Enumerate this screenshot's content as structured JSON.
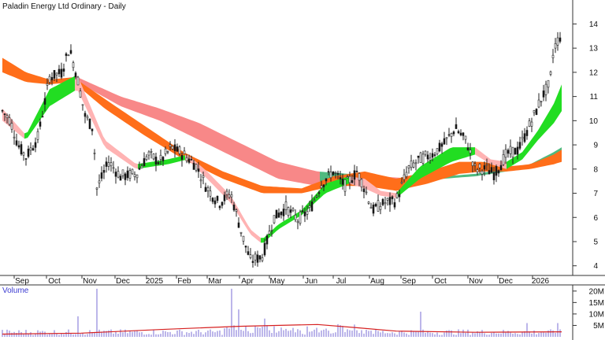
{
  "chart_data": {
    "type": "candlestick",
    "title": "Paladin Energy Ltd Ordinary - Daily",
    "y_ticks": [
      4,
      5,
      6,
      7,
      8,
      9,
      10,
      11,
      12,
      13,
      14
    ],
    "ylim": [
      3.6,
      14.6
    ],
    "x_ticks": [
      "Sep",
      "Oct",
      "Nov",
      "Dec",
      "2025",
      "Feb",
      "Mar",
      "Apr",
      "May",
      "Jun",
      "Jul",
      "Aug",
      "Sep",
      "Oct",
      "Nov",
      "Dec",
      "2026"
    ],
    "price_path": [
      [
        0,
        10.4
      ],
      [
        10,
        10.0
      ],
      [
        20,
        9.0
      ],
      [
        30,
        8.5
      ],
      [
        45,
        9.3
      ],
      [
        60,
        11.8
      ],
      [
        75,
        12.0
      ],
      [
        85,
        13.0
      ],
      [
        95,
        11.8
      ],
      [
        105,
        10.2
      ],
      [
        115,
        9.7
      ],
      [
        120,
        7.2
      ],
      [
        135,
        8.3
      ],
      [
        150,
        7.7
      ],
      [
        170,
        7.8
      ],
      [
        185,
        8.6
      ],
      [
        200,
        8.3
      ],
      [
        215,
        8.9
      ],
      [
        230,
        8.6
      ],
      [
        245,
        8.2
      ],
      [
        260,
        7.2
      ],
      [
        275,
        6.6
      ],
      [
        290,
        7.0
      ],
      [
        305,
        5.2
      ],
      [
        315,
        4.2
      ],
      [
        330,
        4.4
      ],
      [
        345,
        6.0
      ],
      [
        360,
        6.4
      ],
      [
        375,
        5.9
      ],
      [
        390,
        6.3
      ],
      [
        405,
        7.4
      ],
      [
        420,
        7.9
      ],
      [
        435,
        7.3
      ],
      [
        450,
        7.9
      ],
      [
        460,
        7.2
      ],
      [
        470,
        6.3
      ],
      [
        485,
        6.6
      ],
      [
        500,
        6.7
      ],
      [
        515,
        8.0
      ],
      [
        530,
        8.4
      ],
      [
        545,
        8.6
      ],
      [
        560,
        9.0
      ],
      [
        575,
        9.7
      ],
      [
        590,
        9.1
      ],
      [
        600,
        8.0
      ],
      [
        615,
        8.0
      ],
      [
        625,
        7.8
      ],
      [
        640,
        8.6
      ],
      [
        655,
        8.8
      ],
      [
        665,
        9.5
      ],
      [
        675,
        10.2
      ],
      [
        685,
        11.0
      ],
      [
        695,
        11.5
      ],
      [
        700,
        13.0
      ],
      [
        710,
        13.6
      ]
    ],
    "bands": [
      {
        "name": "short",
        "up_color": "#22dd22",
        "down_color": "#ffb3b3",
        "upper": [
          [
            0,
            10.5
          ],
          [
            30,
            9.4
          ],
          [
            60,
            11.3
          ],
          [
            95,
            11.9
          ],
          [
            130,
            9.2
          ],
          [
            170,
            8.2
          ],
          [
            210,
            8.4
          ],
          [
            235,
            8.6
          ],
          [
            260,
            7.9
          ],
          [
            290,
            6.9
          ],
          [
            315,
            5.5
          ],
          [
            330,
            5.1
          ],
          [
            350,
            5.7
          ],
          [
            380,
            6.3
          ],
          [
            410,
            7.4
          ],
          [
            440,
            7.7
          ],
          [
            460,
            7.6
          ],
          [
            480,
            7.1
          ],
          [
            500,
            7.0
          ],
          [
            530,
            8.1
          ],
          [
            570,
            8.9
          ],
          [
            600,
            8.9
          ],
          [
            620,
            8.4
          ],
          [
            640,
            8.3
          ],
          [
            660,
            8.7
          ],
          [
            680,
            9.6
          ],
          [
            700,
            10.7
          ],
          [
            710,
            11.5
          ]
        ],
        "lower": [
          [
            0,
            10.0
          ],
          [
            30,
            9.2
          ],
          [
            60,
            10.6
          ],
          [
            95,
            11.3
          ],
          [
            130,
            8.9
          ],
          [
            170,
            8.0
          ],
          [
            210,
            8.2
          ],
          [
            235,
            8.4
          ],
          [
            260,
            7.6
          ],
          [
            290,
            6.6
          ],
          [
            315,
            5.3
          ],
          [
            330,
            4.9
          ],
          [
            350,
            5.5
          ],
          [
            380,
            6.1
          ],
          [
            410,
            7.0
          ],
          [
            440,
            7.4
          ],
          [
            460,
            7.2
          ],
          [
            480,
            6.9
          ],
          [
            500,
            6.8
          ],
          [
            530,
            7.6
          ],
          [
            570,
            8.3
          ],
          [
            600,
            8.6
          ],
          [
            620,
            8.2
          ],
          [
            640,
            8.0
          ],
          [
            660,
            8.4
          ],
          [
            680,
            9.2
          ],
          [
            700,
            9.9
          ],
          [
            710,
            10.4
          ]
        ]
      },
      {
        "name": "medium",
        "up_color": "#ff6e1a",
        "down_color": "#ff6e1a",
        "upper": [
          [
            0,
            12.6
          ],
          [
            30,
            12.0
          ],
          [
            60,
            11.7
          ],
          [
            90,
            11.8
          ],
          [
            130,
            10.9
          ],
          [
            180,
            9.8
          ],
          [
            230,
            8.7
          ],
          [
            280,
            7.9
          ],
          [
            330,
            7.3
          ],
          [
            380,
            7.2
          ],
          [
            420,
            7.7
          ],
          [
            460,
            7.9
          ],
          [
            500,
            7.6
          ],
          [
            540,
            7.9
          ],
          [
            580,
            8.3
          ],
          [
            610,
            8.3
          ],
          [
            640,
            8.1
          ],
          [
            670,
            8.2
          ],
          [
            700,
            8.6
          ],
          [
            710,
            8.8
          ]
        ],
        "lower": [
          [
            0,
            12.0
          ],
          [
            30,
            11.6
          ],
          [
            60,
            11.5
          ],
          [
            90,
            11.6
          ],
          [
            130,
            10.5
          ],
          [
            180,
            9.4
          ],
          [
            230,
            8.4
          ],
          [
            280,
            7.6
          ],
          [
            330,
            7.0
          ],
          [
            380,
            7.0
          ],
          [
            420,
            7.3
          ],
          [
            460,
            7.3
          ],
          [
            500,
            7.1
          ],
          [
            540,
            7.4
          ],
          [
            580,
            7.8
          ],
          [
            610,
            7.9
          ],
          [
            640,
            7.9
          ],
          [
            670,
            8.0
          ],
          [
            700,
            8.2
          ],
          [
            710,
            8.3
          ]
        ]
      },
      {
        "name": "long",
        "up_color": "#3cb371",
        "down_color": "#f77b7b",
        "upper": [
          [
            95,
            11.8
          ],
          [
            150,
            11.0
          ],
          [
            200,
            10.5
          ],
          [
            250,
            9.9
          ],
          [
            300,
            9.1
          ],
          [
            350,
            8.3
          ],
          [
            400,
            7.9
          ],
          [
            440,
            7.8
          ],
          [
            480,
            7.7
          ],
          [
            520,
            7.6
          ],
          [
            560,
            7.7
          ],
          [
            600,
            7.8
          ],
          [
            640,
            8.0
          ],
          [
            670,
            8.2
          ],
          [
            700,
            8.7
          ],
          [
            710,
            8.9
          ]
        ],
        "lower": [
          [
            95,
            11.6
          ],
          [
            150,
            10.6
          ],
          [
            200,
            10.0
          ],
          [
            250,
            9.2
          ],
          [
            300,
            8.4
          ],
          [
            350,
            7.6
          ],
          [
            400,
            7.3
          ],
          [
            440,
            7.5
          ],
          [
            480,
            7.6
          ],
          [
            520,
            7.5
          ],
          [
            560,
            7.6
          ],
          [
            600,
            7.7
          ],
          [
            640,
            7.9
          ],
          [
            670,
            8.1
          ],
          [
            700,
            8.5
          ],
          [
            710,
            8.6
          ]
        ]
      }
    ],
    "volume": {
      "label": "Volume",
      "ticks": [
        "20M",
        "15M",
        "10M",
        "5M"
      ],
      "tick_values": [
        20,
        15,
        10,
        5
      ],
      "ylim": [
        0,
        22
      ],
      "spikes": [
        [
          119,
          21
        ],
        [
          290,
          21
        ],
        [
          97,
          9
        ],
        [
          300,
          12
        ],
        [
          332,
          8
        ],
        [
          530,
          11
        ],
        [
          665,
          6
        ],
        [
          705,
          6
        ]
      ],
      "average_path": [
        [
          0,
          1.2
        ],
        [
          100,
          1.6
        ],
        [
          200,
          3.2
        ],
        [
          300,
          4.6
        ],
        [
          400,
          5.4
        ],
        [
          450,
          4.0
        ],
        [
          500,
          2.5
        ],
        [
          600,
          2.0
        ],
        [
          710,
          2.2
        ]
      ]
    }
  }
}
